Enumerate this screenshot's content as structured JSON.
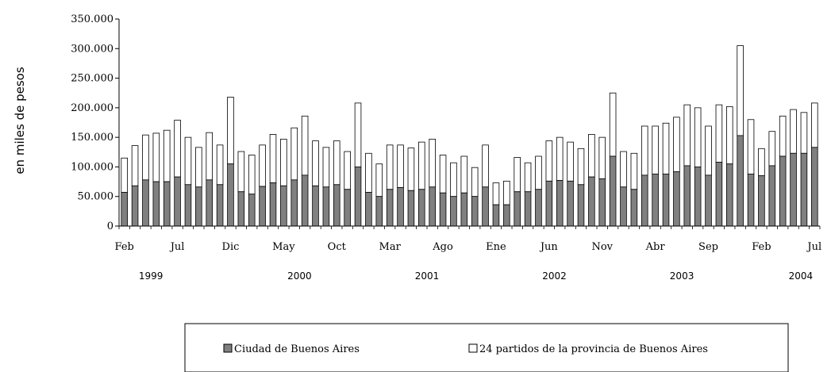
{
  "chart_data": {
    "type": "bar",
    "stacked": true,
    "ylabel": "en miles de pesos",
    "ylim": [
      0,
      350000
    ],
    "yticks": [
      "0",
      "50.000",
      "100.000",
      "150.000",
      "200.000",
      "250.000",
      "300.000",
      "350.000"
    ],
    "grid": false,
    "legend_position": "bottom",
    "month_ticks": [
      {
        "label": "Feb",
        "index": 0
      },
      {
        "label": "Jul",
        "index": 5
      },
      {
        "label": "Dic",
        "index": 10
      },
      {
        "label": "May",
        "index": 15
      },
      {
        "label": "Oct",
        "index": 20
      },
      {
        "label": "Mar",
        "index": 25
      },
      {
        "label": "Ago",
        "index": 30
      },
      {
        "label": "Ene",
        "index": 35
      },
      {
        "label": "Jun",
        "index": 40
      },
      {
        "label": "Nov",
        "index": 45
      },
      {
        "label": "Abr",
        "index": 50
      },
      {
        "label": "Sep",
        "index": 55
      },
      {
        "label": "Feb",
        "index": 60
      },
      {
        "label": "Jul",
        "index": 65
      }
    ],
    "year_labels": [
      {
        "label": "1999",
        "index": 2.5
      },
      {
        "label": "2000",
        "index": 16.5
      },
      {
        "label": "2001",
        "index": 28.5
      },
      {
        "label": "2002",
        "index": 40.5
      },
      {
        "label": "2003",
        "index": 52.5
      },
      {
        "label": "2004",
        "index": 63.7
      }
    ],
    "categories": [
      "Feb 1999",
      "Mar 1999",
      "Abr 1999",
      "May 1999",
      "Jun 1999",
      "Jul 1999",
      "Ago 1999",
      "Sep 1999",
      "Oct 1999",
      "Nov 1999",
      "Dic 1999",
      "Ene 2000",
      "Feb 2000",
      "Mar 2000",
      "Abr 2000",
      "May 2000",
      "Jun 2000",
      "Jul 2000",
      "Ago 2000",
      "Sep 2000",
      "Oct 2000",
      "Nov 2000",
      "Dic 2000",
      "Ene 2001",
      "Feb 2001",
      "Mar 2001",
      "Abr 2001",
      "May 2001",
      "Jun 2001",
      "Jul 2001",
      "Ago 2001",
      "Sep 2001",
      "Oct 2001",
      "Nov 2001",
      "Dic 2001",
      "Ene 2002",
      "Feb 2002",
      "Mar 2002",
      "Abr 2002",
      "May 2002",
      "Jun 2002",
      "Jul 2002",
      "Ago 2002",
      "Sep 2002",
      "Oct 2002",
      "Nov 2002",
      "Dic 2002",
      "Ene 2003",
      "Feb 2003",
      "Mar 2003",
      "Abr 2003",
      "May 2003",
      "Jun 2003",
      "Jul 2003",
      "Ago 2003",
      "Sep 2003",
      "Oct 2003",
      "Nov 2003",
      "Dic 2003",
      "Ene 2004",
      "Feb 2004",
      "Mar 2004",
      "Abr 2004",
      "May 2004",
      "Jun 2004",
      "Jul 2004"
    ],
    "series": [
      {
        "name": "Ciudad de Buenos Aires",
        "color": "#808080",
        "values": [
          57000,
          68000,
          78000,
          75000,
          75000,
          83000,
          70000,
          66000,
          78000,
          70000,
          105000,
          58000,
          54000,
          67000,
          73000,
          68000,
          78000,
          86000,
          68000,
          66000,
          70000,
          62000,
          100000,
          57000,
          50000,
          62000,
          65000,
          60000,
          62000,
          66000,
          56000,
          50000,
          56000,
          50000,
          66000,
          36000,
          36000,
          58000,
          58000,
          62000,
          76000,
          77000,
          76000,
          70000,
          83000,
          80000,
          118000,
          66000,
          62000,
          86000,
          88000,
          88000,
          92000,
          102000,
          100000,
          86000,
          108000,
          105000,
          153000,
          88000,
          85000,
          102000,
          118000,
          123000,
          123000,
          133000
        ]
      },
      {
        "name": "24 partidos de la provincia de Buenos Aires",
        "color": "#ffffff",
        "values": [
          58000,
          68000,
          76000,
          82000,
          87000,
          96000,
          80000,
          67000,
          80000,
          67000,
          113000,
          68000,
          66000,
          70000,
          82000,
          79000,
          88000,
          100000,
          76000,
          67000,
          74000,
          64000,
          108000,
          66000,
          55000,
          75000,
          72000,
          72000,
          80000,
          81000,
          64000,
          57000,
          62000,
          49000,
          71000,
          37000,
          40000,
          58000,
          49000,
          56000,
          68000,
          73000,
          66000,
          61000,
          72000,
          70000,
          107000,
          60000,
          61000,
          83000,
          81000,
          86000,
          92000,
          103000,
          100000,
          83000,
          97000,
          97000,
          152000,
          92000,
          46000,
          58000,
          68000,
          74000,
          69000,
          75000
        ]
      }
    ]
  },
  "legend": {
    "items": [
      {
        "label": "Ciudad de Buenos Aires",
        "color": "#808080"
      },
      {
        "label": "24 partidos de la provincia de Buenos Aires",
        "color": "#ffffff"
      }
    ]
  }
}
